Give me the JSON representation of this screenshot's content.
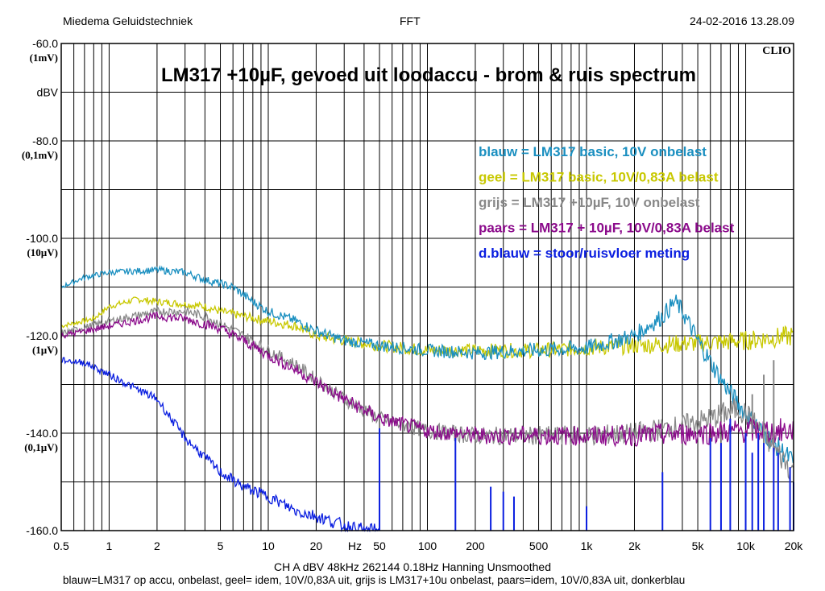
{
  "header": {
    "left": "Miedema Geluidstechniek",
    "center": "FFT",
    "right": "24-02-2016 13.28.09"
  },
  "footer": {
    "line1": "CH A   dBV   48kHz   262144   0.18Hz   Hanning   Unsmoothed",
    "line2": "blauw=LM317 op accu, onbelast,  geel= idem, 10V/0,83A uit,  grijs is LM317+10u onbelast,  paars=idem, 10V/0,83A uit, donkerblau"
  },
  "chart_data": {
    "type": "line",
    "title": "LM317 +10µF, gevoed uit loodaccu  -  brom & ruis spectrum",
    "brand": "CLIO",
    "xscale": "log",
    "xlim": [
      0.5,
      20000
    ],
    "ylim": [
      -160,
      -60
    ],
    "ylabel": "dBV",
    "grid": true,
    "x_ticks": [
      {
        "v": 0.5,
        "label": "0.5"
      },
      {
        "v": 1,
        "label": "1"
      },
      {
        "v": 2,
        "label": "2"
      },
      {
        "v": 5,
        "label": "5"
      },
      {
        "v": 10,
        "label": "10"
      },
      {
        "v": 20,
        "label": "20"
      },
      {
        "v": 50,
        "label": "50"
      },
      {
        "v": 100,
        "label": "100"
      },
      {
        "v": 200,
        "label": "200"
      },
      {
        "v": 500,
        "label": "500"
      },
      {
        "v": 1000,
        "label": "1k"
      },
      {
        "v": 2000,
        "label": "2k"
      },
      {
        "v": 5000,
        "label": "5k"
      },
      {
        "v": 10000,
        "label": "10k"
      },
      {
        "v": 20000,
        "label": "20k"
      }
    ],
    "x_unit_label": "Hz",
    "y_ticks": [
      {
        "v": -60,
        "label": "-60.0",
        "sub": "(1mV)"
      },
      {
        "v": -80,
        "label": "-80.0",
        "sub": "(0,1mV)"
      },
      {
        "v": -100,
        "label": "-100.0",
        "sub": "(10µV)"
      },
      {
        "v": -120,
        "label": "-120.0",
        "sub": "(1µV)"
      },
      {
        "v": -140,
        "label": "-140.0",
        "sub": "(0,1µV)"
      },
      {
        "v": -160,
        "label": "-160.0",
        "sub": ""
      }
    ],
    "legend_position": "right",
    "legend": [
      {
        "text": "blauw = LM317 basic, 10V onbelast",
        "color": "#1a8fc0"
      },
      {
        "text": "geel = LM317 basic, 10V/0,83A belast",
        "color": "#c8c800"
      },
      {
        "text": "grijs = LM317 +10µF, 10V onbelast",
        "color": "#888888"
      },
      {
        "text": "paars = LM317 + 10µF, 10V/0,83A belast",
        "color": "#8b0a8b"
      },
      {
        "text": "d.blauw = stoor/ruisvloer meting",
        "color": "#0a1ee0"
      }
    ],
    "series": [
      {
        "color": "#c8c800",
        "noise": 1.2,
        "points": [
          [
            0.5,
            -118
          ],
          [
            0.8,
            -116.5
          ],
          [
            1,
            -114
          ],
          [
            1.5,
            -112.5
          ],
          [
            2,
            -113
          ],
          [
            3,
            -113.5
          ],
          [
            4,
            -114
          ],
          [
            5,
            -115
          ],
          [
            7,
            -116
          ],
          [
            10,
            -117
          ],
          [
            15,
            -118
          ],
          [
            20,
            -120
          ],
          [
            30,
            -121
          ],
          [
            50,
            -122
          ],
          [
            100,
            -123
          ],
          [
            200,
            -123
          ],
          [
            300,
            -123
          ],
          [
            500,
            -123
          ],
          [
            1000,
            -122.5
          ],
          [
            2000,
            -122
          ],
          [
            5000,
            -121.5
          ],
          [
            10000,
            -121
          ],
          [
            20000,
            -120
          ]
        ]
      },
      {
        "color": "#1a8fc0",
        "noise": 1.2,
        "points": [
          [
            0.5,
            -110
          ],
          [
            0.7,
            -108
          ],
          [
            1,
            -107
          ],
          [
            2,
            -106.5
          ],
          [
            3,
            -107
          ],
          [
            4,
            -108.5
          ],
          [
            6,
            -110
          ],
          [
            8,
            -113
          ],
          [
            10,
            -115
          ],
          [
            15,
            -117
          ],
          [
            20,
            -119
          ],
          [
            30,
            -121
          ],
          [
            50,
            -122
          ],
          [
            100,
            -123
          ],
          [
            200,
            -123.5
          ],
          [
            500,
            -123
          ],
          [
            1000,
            -122.5
          ],
          [
            2000,
            -120
          ],
          [
            3000,
            -116
          ],
          [
            3600,
            -113
          ],
          [
            4000,
            -115
          ],
          [
            5000,
            -121
          ],
          [
            7000,
            -129
          ],
          [
            10000,
            -136
          ],
          [
            15000,
            -142
          ],
          [
            20000,
            -146
          ]
        ]
      },
      {
        "color": "#888888",
        "noise": 1.5,
        "points": [
          [
            0.5,
            -119.5
          ],
          [
            1,
            -117
          ],
          [
            2,
            -115
          ],
          [
            3,
            -115
          ],
          [
            4,
            -116
          ],
          [
            5,
            -117.5
          ],
          [
            7,
            -120
          ],
          [
            10,
            -123
          ],
          [
            15,
            -126
          ],
          [
            20,
            -129
          ],
          [
            30,
            -133
          ],
          [
            50,
            -137
          ],
          [
            100,
            -139.5
          ],
          [
            200,
            -140.5
          ],
          [
            500,
            -140.5
          ],
          [
            1000,
            -140.5
          ],
          [
            2000,
            -140
          ],
          [
            4000,
            -138.5
          ],
          [
            6000,
            -137
          ],
          [
            8000,
            -135.5
          ],
          [
            9000,
            -135
          ],
          [
            10000,
            -136
          ],
          [
            12000,
            -139
          ],
          [
            15000,
            -143
          ],
          [
            20000,
            -148
          ]
        ]
      },
      {
        "color": "#8b0a8b",
        "noise": 1.5,
        "points": [
          [
            0.5,
            -120
          ],
          [
            1,
            -118
          ],
          [
            2,
            -116
          ],
          [
            3,
            -116.5
          ],
          [
            5,
            -118.5
          ],
          [
            7,
            -121
          ],
          [
            10,
            -124
          ],
          [
            15,
            -127
          ],
          [
            20,
            -129.5
          ],
          [
            30,
            -133
          ],
          [
            50,
            -137
          ],
          [
            100,
            -139.5
          ],
          [
            200,
            -140.5
          ],
          [
            500,
            -140.5
          ],
          [
            1000,
            -140.5
          ],
          [
            2000,
            -140.5
          ],
          [
            5000,
            -140
          ],
          [
            10000,
            -139.5
          ],
          [
            20000,
            -139.5
          ]
        ]
      },
      {
        "color": "#0a1ee0",
        "noise": 1.5,
        "points": [
          [
            0.5,
            -125
          ],
          [
            0.7,
            -125.5
          ],
          [
            1,
            -128
          ],
          [
            1.5,
            -131
          ],
          [
            2,
            -133
          ],
          [
            3,
            -141
          ],
          [
            5,
            -148
          ],
          [
            7,
            -151
          ],
          [
            10,
            -153
          ],
          [
            15,
            -156
          ],
          [
            20,
            -157
          ],
          [
            30,
            -159
          ],
          [
            40,
            -160
          ],
          [
            50,
            -160
          ]
        ]
      }
    ],
    "spikes": [
      {
        "x": 50,
        "from": -122,
        "to": -120,
        "color": "#888888"
      },
      {
        "x": 50,
        "from": -160,
        "to": -139,
        "color": "#0a1ee0"
      },
      {
        "x": 150,
        "from": -160,
        "to": -141,
        "color": "#0a1ee0"
      },
      {
        "x": 250,
        "from": -160,
        "to": -151,
        "color": "#0a1ee0"
      },
      {
        "x": 300,
        "from": -160,
        "to": -152,
        "color": "#0a1ee0"
      },
      {
        "x": 350,
        "from": -160,
        "to": -153,
        "color": "#0a1ee0"
      },
      {
        "x": 1000,
        "from": -160,
        "to": -155,
        "color": "#0a1ee0"
      },
      {
        "x": 3000,
        "from": -160,
        "to": -148,
        "color": "#0a1ee0"
      },
      {
        "x": 6000,
        "from": -160,
        "to": -141,
        "color": "#0a1ee0"
      },
      {
        "x": 7000,
        "from": -160,
        "to": -142,
        "color": "#0a1ee0"
      },
      {
        "x": 8000,
        "from": -160,
        "to": -137,
        "color": "#0a1ee0"
      },
      {
        "x": 10000,
        "from": -160,
        "to": -140,
        "color": "#0a1ee0"
      },
      {
        "x": 11000,
        "from": -160,
        "to": -144,
        "color": "#0a1ee0"
      },
      {
        "x": 12000,
        "from": -160,
        "to": -140,
        "color": "#0a1ee0"
      },
      {
        "x": 13000,
        "from": -160,
        "to": -141,
        "color": "#0a1ee0"
      },
      {
        "x": 15000,
        "from": -160,
        "to": -142,
        "color": "#0a1ee0"
      },
      {
        "x": 16000,
        "from": -160,
        "to": -144,
        "color": "#0a1ee0"
      },
      {
        "x": 19000,
        "from": -160,
        "to": -147,
        "color": "#0a1ee0"
      },
      {
        "x": 20000,
        "from": -160,
        "to": -150,
        "color": "#0a1ee0"
      },
      {
        "x": 11000,
        "from": -140,
        "to": -132,
        "color": "#888888"
      },
      {
        "x": 13000,
        "from": -142,
        "to": -128,
        "color": "#888888"
      },
      {
        "x": 15000,
        "from": -143,
        "to": -125,
        "color": "#888888"
      }
    ]
  }
}
